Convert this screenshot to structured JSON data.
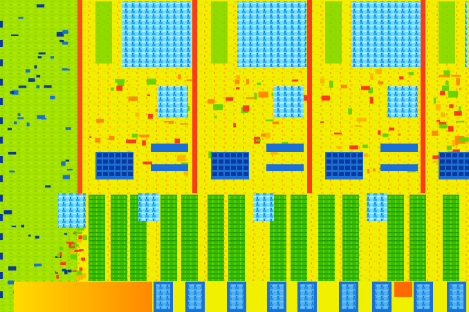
{
  "image": {
    "subject": "cpu-die-shot",
    "style": "false-color",
    "visible_text": [],
    "palette": {
      "base_yellow": "#e8ec00",
      "gpu_green": "#9fe000",
      "core_orange": "#ffb400",
      "ring_red": "#ff3a1a",
      "cache_green": "#23a800",
      "cache_light_green": "#67d400",
      "array_blue": "#1b6fd8",
      "array_cyan": "#44d7ff",
      "dark_blue": "#0b3a9a"
    },
    "regions": [
      "graphics-block",
      "core-1",
      "core-2",
      "core-3",
      "core-4",
      "l3-cache",
      "system-agent-io",
      "ring-bus"
    ]
  }
}
